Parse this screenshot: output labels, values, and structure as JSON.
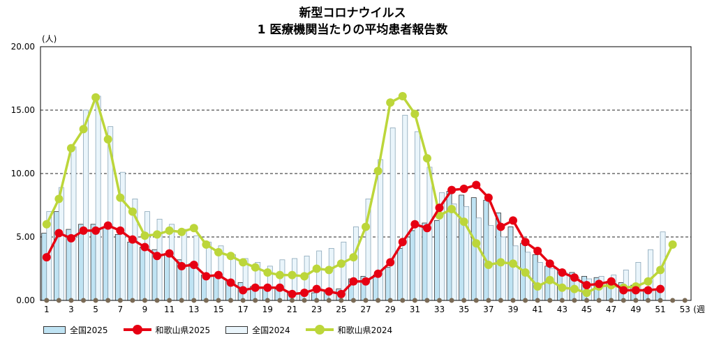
{
  "chart_data": {
    "type": "bar",
    "title": "新型コロナウイルス",
    "subtitle": "1 医療機関当たりの平均患者報告数",
    "ylabel": "(人)",
    "xlabel": "(週)",
    "ylim": [
      0,
      20
    ],
    "yticks": [
      "0.00",
      "5.00",
      "10.00",
      "15.00",
      "20.00"
    ],
    "xtick_labels": [
      "1",
      "3",
      "5",
      "7",
      "9",
      "11",
      "13",
      "15",
      "17",
      "19",
      "21",
      "23",
      "25",
      "27",
      "29",
      "31",
      "33",
      "35",
      "37",
      "39",
      "41",
      "43",
      "45",
      "47",
      "49",
      "51",
      "53"
    ],
    "weeks": [
      1,
      2,
      3,
      4,
      5,
      6,
      7,
      8,
      9,
      10,
      11,
      12,
      13,
      14,
      15,
      16,
      17,
      18,
      19,
      20,
      21,
      22,
      23,
      24,
      25,
      26,
      27,
      28,
      29,
      30,
      31,
      32,
      33,
      34,
      35,
      36,
      37,
      38,
      39,
      40,
      41,
      42,
      43,
      44,
      45,
      46,
      47,
      48,
      49,
      50,
      51,
      52,
      53
    ],
    "grid": "dashed horizontal at 5, 10, 15",
    "legend_position": "bottom",
    "colors": {
      "bar2025": "#bfe3f3",
      "bar2024": "#eaf5fb",
      "line2025": "#e60012",
      "line2024": "#bcd63a",
      "baseline_dot": "#7a6a55"
    },
    "series": [
      {
        "name": "全国2025",
        "kind": "bar",
        "values": [
          5.3,
          7.0,
          5.6,
          6.0,
          6.0,
          5.8,
          5.2,
          4.6,
          4.2,
          4.0,
          3.7,
          3.2,
          2.9,
          2.0,
          1.9,
          1.6,
          1.4,
          1.1,
          1.0,
          0.9,
          0.7,
          0.6,
          0.6,
          0.7,
          0.9,
          1.7,
          1.9,
          2.0,
          2.6,
          4.1,
          5.5,
          6.1,
          6.3,
          8.6,
          8.3,
          8.1,
          7.9,
          6.9,
          5.8,
          4.5,
          3.6,
          2.7,
          2.4,
          2.2,
          1.9,
          1.8,
          1.5,
          1.4,
          1.2,
          0.9,
          0.9,
          null,
          null
        ]
      },
      {
        "name": "和歌山県2025",
        "kind": "line",
        "values": [
          3.4,
          5.3,
          4.9,
          5.5,
          5.5,
          5.9,
          5.5,
          4.8,
          4.2,
          3.5,
          3.7,
          2.7,
          2.8,
          1.9,
          2.0,
          1.4,
          0.8,
          1.0,
          1.0,
          1.0,
          0.5,
          0.6,
          0.9,
          0.7,
          0.5,
          1.5,
          1.5,
          2.1,
          3.0,
          4.6,
          6.0,
          5.7,
          7.3,
          8.7,
          8.8,
          9.1,
          8.1,
          5.8,
          6.3,
          4.6,
          3.9,
          2.9,
          2.2,
          1.8,
          1.2,
          1.3,
          1.5,
          0.8,
          0.8,
          0.8,
          0.9,
          null,
          null
        ]
      },
      {
        "name": "全国2024",
        "kind": "bar",
        "values": [
          7.0,
          8.9,
          12.1,
          15.0,
          16.1,
          13.7,
          10.1,
          8.0,
          7.0,
          6.4,
          6.0,
          5.6,
          5.1,
          4.6,
          4.3,
          3.6,
          3.3,
          3.0,
          2.7,
          3.2,
          3.3,
          3.5,
          3.9,
          4.1,
          4.6,
          5.8,
          8.0,
          11.1,
          13.6,
          14.6,
          13.3,
          10.5,
          8.5,
          7.6,
          7.4,
          6.5,
          5.9,
          5.0,
          4.3,
          3.8,
          3.0,
          2.5,
          2.2,
          1.8,
          1.7,
          1.9,
          2.0,
          2.4,
          3.0,
          4.0,
          5.4,
          null,
          null
        ]
      },
      {
        "name": "和歌山県2024",
        "kind": "line",
        "values": [
          6.0,
          8.0,
          12.0,
          13.5,
          16.0,
          12.7,
          8.1,
          7.0,
          5.1,
          5.2,
          5.5,
          5.4,
          5.7,
          4.4,
          3.8,
          3.5,
          3.0,
          2.6,
          2.2,
          2.0,
          2.0,
          1.9,
          2.5,
          2.4,
          2.9,
          3.4,
          5.8,
          10.2,
          15.6,
          16.1,
          14.7,
          11.2,
          6.7,
          7.2,
          6.2,
          4.5,
          2.8,
          3.0,
          2.9,
          2.2,
          1.1,
          1.6,
          1.0,
          0.9,
          0.6,
          1.1,
          1.2,
          1.0,
          1.1,
          1.5,
          2.4,
          4.4,
          null
        ]
      }
    ]
  }
}
